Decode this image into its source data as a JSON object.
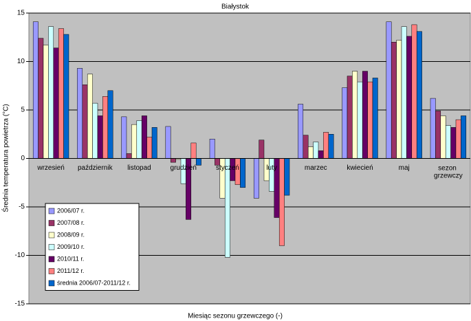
{
  "chart_data": {
    "type": "bar",
    "title": "Białystok",
    "x_label": "Miesiąc sezonu grzewczego (-)",
    "y_label": "Średnia temperatura powietrza (°C)",
    "categories": [
      "wrzesień",
      "październik",
      "listopad",
      "grudzień",
      "styczeń",
      "luty",
      "marzec",
      "kwiecień",
      "maj",
      "sezon grzewczy"
    ],
    "series": [
      {
        "name": "2006/07 r.",
        "color": "#9999ff",
        "values": [
          14.1,
          9.3,
          4.3,
          3.3,
          2.0,
          -4.1,
          5.6,
          7.3,
          14.1,
          6.2
        ]
      },
      {
        "name": "2007/08 r.",
        "color": "#993366",
        "values": [
          12.4,
          7.6,
          0.5,
          -0.4,
          -0.7,
          1.9,
          2.4,
          8.5,
          12.0,
          4.9
        ]
      },
      {
        "name": "2008/09 r.",
        "color": "#ffffcc",
        "values": [
          11.7,
          8.7,
          3.5,
          -0.1,
          -4.1,
          -2.3,
          1.2,
          9.0,
          12.2,
          4.4
        ]
      },
      {
        "name": "2009/10 r.",
        "color": "#ccffff",
        "values": [
          13.6,
          5.7,
          3.9,
          -2.6,
          -10.2,
          -3.4,
          1.7,
          7.9,
          13.6,
          3.4
        ]
      },
      {
        "name": "2010/11 r.",
        "color": "#660066",
        "values": [
          11.4,
          4.4,
          4.4,
          -6.3,
          -2.3,
          -6.1,
          0.8,
          9.0,
          12.6,
          3.2
        ]
      },
      {
        "name": "2011/12 r.",
        "color": "#ff8080",
        "values": [
          13.4,
          6.4,
          2.2,
          1.6,
          -2.7,
          -9.0,
          2.7,
          7.9,
          13.8,
          4.0
        ]
      },
      {
        "name": "średnia 2006/07-2011/12 r.",
        "color": "#0066cc",
        "values": [
          12.8,
          7.0,
          3.2,
          -0.7,
          -3.0,
          -3.8,
          2.5,
          8.3,
          13.1,
          4.4
        ]
      }
    ],
    "ylim": [
      -15,
      15
    ],
    "yticks": [
      -15,
      -10,
      -5,
      0,
      5,
      10,
      15
    ],
    "grid": true,
    "legend_position": "lower-left"
  }
}
